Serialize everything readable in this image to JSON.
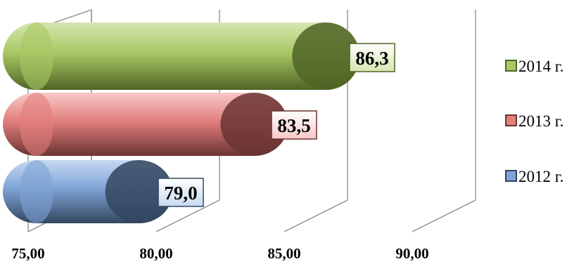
{
  "chart_data": {
    "type": "bar",
    "orientation": "horizontal",
    "style": "3d-cylinder",
    "title": "",
    "xlabel": "",
    "ylabel": "",
    "xlim": [
      75,
      90
    ],
    "x_ticks": [
      75,
      80,
      85,
      90
    ],
    "x_tick_labels": [
      "75,00",
      "80,00",
      "85,00",
      "90,00"
    ],
    "grid": true,
    "legend_position": "right",
    "series": [
      {
        "name": "2012 г.",
        "value": 79.0,
        "label": "79,0",
        "color": "#7fa3d6",
        "dark": "#33465f",
        "labelbg": "#c6d9f1"
      },
      {
        "name": "2013 г.",
        "value": 83.5,
        "label": "83,5",
        "color": "#e27f7d",
        "dark": "#6a3432",
        "labelbg": "#f6c8c7"
      },
      {
        "name": "2014 г.",
        "value": 86.3,
        "label": "86,3",
        "color": "#a8c864",
        "dark": "#4f6424",
        "labelbg": "#d7e6b1"
      }
    ]
  }
}
